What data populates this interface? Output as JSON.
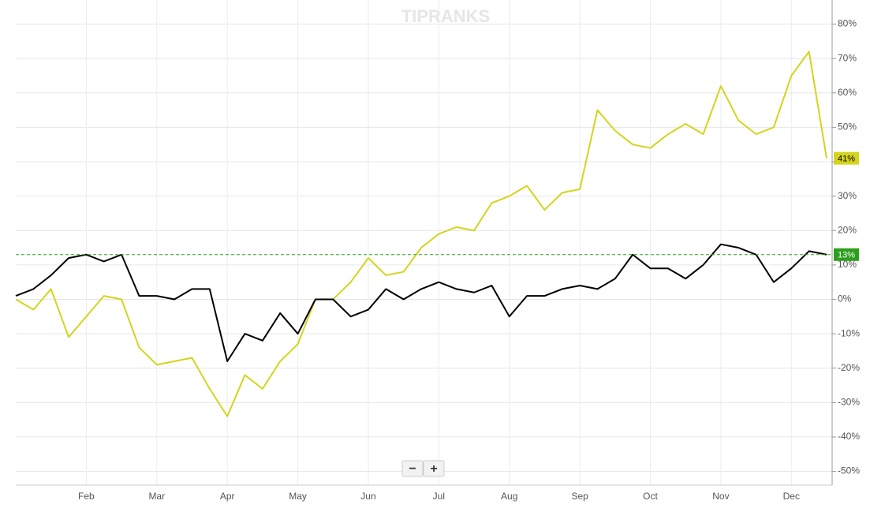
{
  "chart_data": {
    "type": "line",
    "watermark": "TIPRANKS",
    "zoom_controls": [
      "−",
      "+"
    ],
    "categories": [
      null,
      null,
      null,
      null,
      "Feb",
      null,
      null,
      null,
      "Mar",
      null,
      null,
      null,
      "Apr",
      null,
      null,
      null,
      "May",
      null,
      null,
      null,
      "Jun",
      null,
      null,
      null,
      "Jul",
      null,
      null,
      null,
      "Aug",
      null,
      null,
      null,
      "Sep",
      null,
      null,
      null,
      "Oct",
      null,
      null,
      null,
      "Nov",
      null,
      null,
      null,
      "Dec",
      null,
      null
    ],
    "series": [
      {
        "color": "#d4d41e",
        "values": [
          0,
          -3,
          3,
          -11,
          -5,
          1,
          0,
          -14,
          -19,
          -18,
          -17,
          -26,
          -34,
          -22,
          -26,
          -18,
          -13,
          0,
          0,
          5,
          12,
          7,
          8,
          15,
          19,
          21,
          20,
          28,
          30,
          33,
          26,
          31,
          32,
          55,
          49,
          45,
          44,
          48,
          51,
          48,
          62,
          52,
          48,
          50,
          65,
          72,
          41
        ],
        "value_labels": [
          null,
          null,
          null,
          null,
          null,
          null,
          null,
          null,
          null,
          null,
          null,
          null,
          null,
          null,
          null,
          null,
          null,
          null,
          null,
          null,
          null,
          null,
          null,
          null,
          null,
          null,
          null,
          null,
          null,
          null,
          null,
          null,
          null,
          null,
          null,
          null,
          null,
          null,
          null,
          null,
          null,
          null,
          null,
          null,
          null,
          null,
          "41%"
        ]
      },
      {
        "color": "#000000",
        "values": [
          1,
          3,
          7,
          12,
          13,
          11,
          13,
          1,
          1,
          0,
          3,
          3,
          -18,
          -10,
          -12,
          -4,
          -10,
          0,
          0,
          -5,
          -3,
          3,
          0,
          3,
          5,
          3,
          2,
          4,
          -5,
          1,
          1,
          3,
          4,
          3,
          6,
          13,
          9,
          9,
          6,
          10,
          16,
          15,
          13,
          5,
          9,
          14,
          13
        ],
        "value_labels": [
          null,
          null,
          null,
          null,
          null,
          null,
          null,
          null,
          null,
          null,
          null,
          null,
          null,
          null,
          null,
          null,
          null,
          null,
          null,
          null,
          null,
          null,
          null,
          null,
          null,
          null,
          null,
          null,
          null,
          null,
          null,
          null,
          null,
          null,
          null,
          null,
          null,
          null,
          null,
          null,
          null,
          null,
          null,
          null,
          null,
          null,
          "13%"
        ]
      }
    ],
    "ylim": [
      -54,
      87
    ],
    "yticks": [
      {
        "value": -50,
        "label": "-50%"
      },
      {
        "value": -40,
        "label": "-40%"
      },
      {
        "value": -30,
        "label": "-30%"
      },
      {
        "value": -20,
        "label": "-20%"
      },
      {
        "value": -10,
        "label": "-10%"
      },
      {
        "value": 0,
        "label": "0%"
      },
      {
        "value": 10,
        "label": "10%"
      },
      {
        "value": 20,
        "label": "20%"
      },
      {
        "value": 30,
        "label": "30%"
      },
      {
        "value": 40,
        "label": "40%"
      },
      {
        "value": 50,
        "label": "50%"
      },
      {
        "value": 60,
        "label": "60%"
      },
      {
        "value": 70,
        "label": "70%"
      },
      {
        "value": 80,
        "label": "80%"
      }
    ],
    "grid": true
  }
}
